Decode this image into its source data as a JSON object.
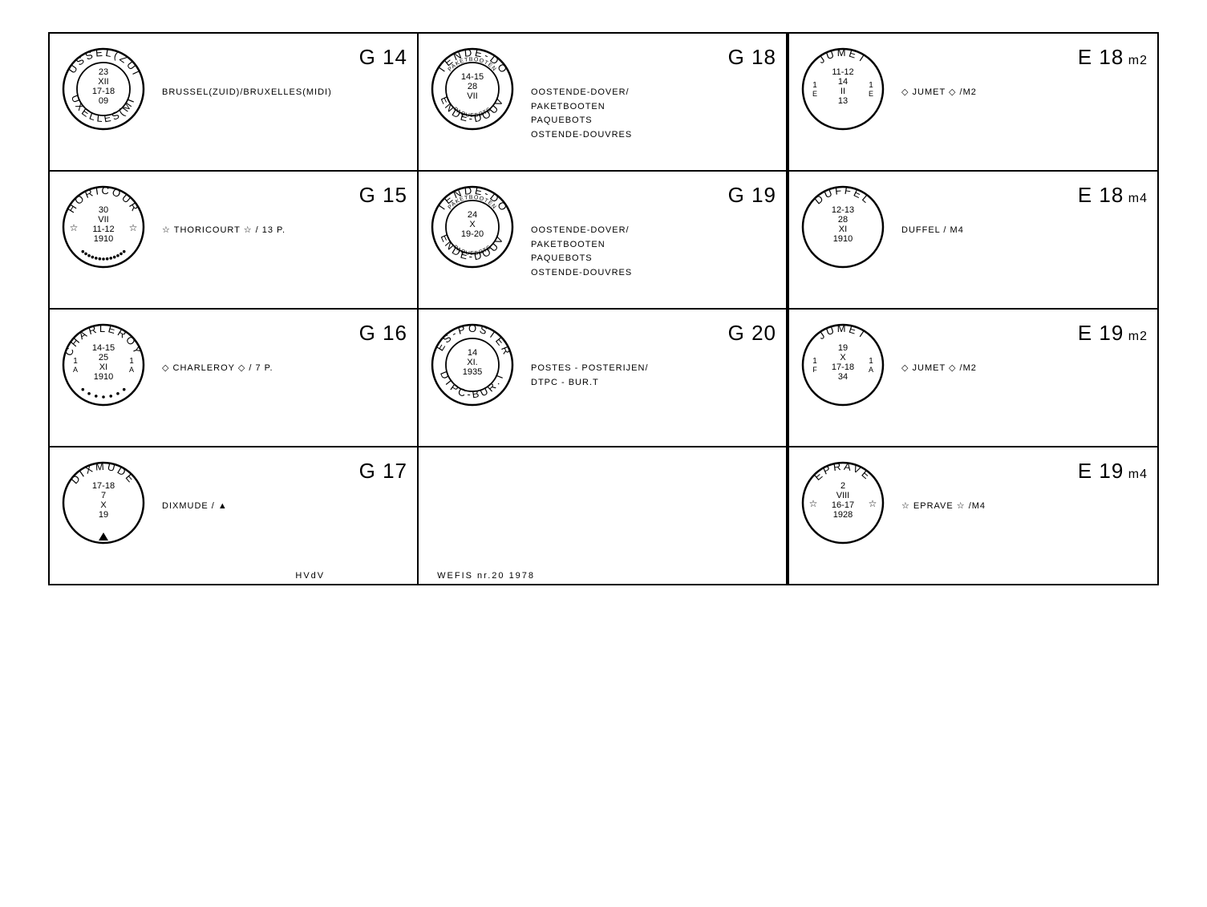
{
  "footer": {
    "left": "HVdV",
    "right": "WEFIS nr.20 1978"
  },
  "styling": {
    "border_color": "#000000",
    "background_color": "#ffffff",
    "postmark_stroke_width": 2,
    "code_fontsize": 26,
    "desc_fontsize": 11,
    "cell_min_height": 170
  },
  "left_rows": [
    {
      "cells": [
        {
          "code": "G 14",
          "desc": "BRUSSEL(ZUID)/BRUXELLES(MIDI)",
          "pm": {
            "type": "double",
            "top": "BRUSSEL(ZUID)",
            "bottom": "BRUXELLES(MIDI)",
            "center": [
              "23",
              "XII",
              "17-18",
              "09"
            ]
          }
        },
        {
          "code": "G 18",
          "desc": "OOSTENDE-DOVER/\nPAKETBOOTEN\nPAQUEBOTS\nOSTENDE-DOUVRES",
          "pm": {
            "type": "double",
            "top": "OOSTENDE-DOVER",
            "top2": "PAKETBOOTEN",
            "bottom": "OSTENDE-DOUVRES",
            "bottom2": "PAQUEBOTS",
            "center": [
              "14-15",
              "28",
              "VII"
            ]
          }
        }
      ]
    },
    {
      "cells": [
        {
          "code": "G 15",
          "desc": "☆ THORICOURT ☆ / 13 p.",
          "pm": {
            "type": "single_stardots",
            "top": "THORICOURT",
            "center": [
              "30",
              "VII",
              "11-12",
              "1910"
            ],
            "dots": 13
          }
        },
        {
          "code": "G 19",
          "desc": "OOSTENDE-DOVER/\nPAKETBOOTEN\nPAQUEBOTS\nOSTENDE-DOUVRES",
          "pm": {
            "type": "double",
            "top": "OOSTENDE-DOVER",
            "top2": "PAKETBOOTEN",
            "bottom": "OSTENDE-DOUVRES",
            "bottom2": "PAQUEBOTS",
            "center": [
              "24",
              "X",
              "19-20"
            ]
          }
        }
      ]
    },
    {
      "cells": [
        {
          "code": "G 16",
          "desc": "◇ CHARLEROY ◇ / 7 p.",
          "pm": {
            "type": "single_sides_dots",
            "top": "CHARLEROY",
            "center": [
              "14-15",
              "25",
              "XI",
              "1910"
            ],
            "left": "1\nA",
            "right": "1\nA",
            "dots": 7
          }
        },
        {
          "code": "G 20",
          "desc": "POSTES - POSTERIJEN/\nDTPC - BUR.T",
          "pm": {
            "type": "double",
            "top": "POSTES-POSTERIJEN",
            "bottom": "DTPC-BUR.T",
            "center": [
              "14",
              "XI.",
              "1935"
            ]
          }
        }
      ]
    },
    {
      "cells": [
        {
          "code": "G 17",
          "desc": "DIXMUDE / ▲",
          "pm": {
            "type": "single_tri",
            "top": "DIXMUDE",
            "center": [
              "17-18",
              "7",
              "X",
              "19"
            ]
          }
        },
        {
          "empty": true
        }
      ]
    }
  ],
  "right_rows": [
    {
      "code": "E 18",
      "sub": "m2",
      "desc": "◇ JUMET ◇ /m2",
      "pm": {
        "type": "single_sides",
        "top": "JUMET",
        "center": [
          "11-12",
          "14",
          "II",
          "13"
        ],
        "left": "1\nE",
        "right": "1\nE"
      }
    },
    {
      "code": "E 18",
      "sub": "m4",
      "desc": "DUFFEL / m4",
      "pm": {
        "type": "single",
        "top": "DUFFEL",
        "center": [
          "12-13",
          "28",
          "XI",
          "1910"
        ]
      }
    },
    {
      "code": "E 19",
      "sub": "m2",
      "desc": "◇ JUMET ◇ /m2",
      "pm": {
        "type": "single_sides",
        "top": "JUMET",
        "center": [
          "19",
          "X",
          "17-18",
          "34"
        ],
        "left": "1\nF",
        "right": "1\nA"
      }
    },
    {
      "code": "E 19",
      "sub": "m4",
      "desc": "☆ EPRAVE ☆ /m4",
      "pm": {
        "type": "single_stars",
        "top": "EPRAVE",
        "center": [
          "2",
          "VIII",
          "16-17",
          "1928"
        ]
      }
    }
  ]
}
